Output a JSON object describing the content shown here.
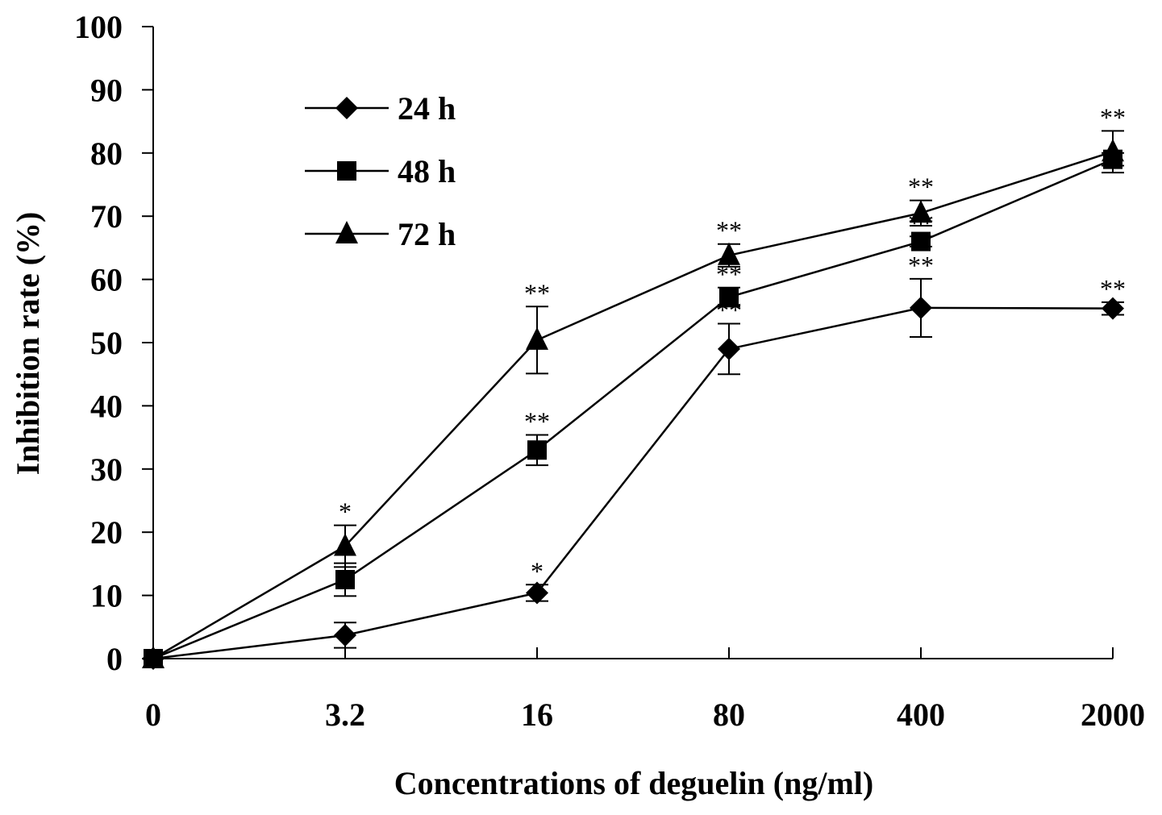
{
  "chart_data": {
    "type": "line",
    "xlabel": "Concentrations of deguelin (ng/ml)",
    "ylabel": "Inhibition rate (%)",
    "categories": [
      "0",
      "3.2",
      "16",
      "80",
      "400",
      "2000"
    ],
    "ylim": [
      0,
      100
    ],
    "yticks": [
      "0",
      "10",
      "20",
      "30",
      "40",
      "50",
      "60",
      "70",
      "80",
      "90",
      "100"
    ],
    "grid": false,
    "legend_position": "top-left",
    "series": [
      {
        "name": "24 h",
        "marker": "diamond",
        "values": [
          0,
          3.7,
          10.4,
          49.0,
          55.5,
          55.4
        ],
        "error": [
          0,
          2.0,
          1.3,
          4.0,
          4.6,
          1.0
        ],
        "significance": [
          "",
          "",
          "*",
          "**",
          "**",
          "**"
        ]
      },
      {
        "name": "48 h",
        "marker": "square",
        "values": [
          0,
          12.5,
          33.0,
          57.2,
          66.0,
          79.0
        ],
        "error": [
          0,
          2.6,
          2.4,
          1.5,
          0.8,
          1.0
        ],
        "significance": [
          "",
          "",
          "**",
          "**",
          "**",
          ""
        ]
      },
      {
        "name": "72 h",
        "marker": "triangle",
        "values": [
          0,
          17.8,
          50.4,
          63.8,
          70.5,
          80.2
        ],
        "error": [
          0,
          3.3,
          5.3,
          1.8,
          2.0,
          3.3
        ],
        "significance": [
          "",
          "*",
          "**",
          "**",
          "**",
          "**"
        ]
      }
    ],
    "colors": {
      "line": "#000000",
      "marker": "#000000",
      "background": "#ffffff"
    }
  }
}
